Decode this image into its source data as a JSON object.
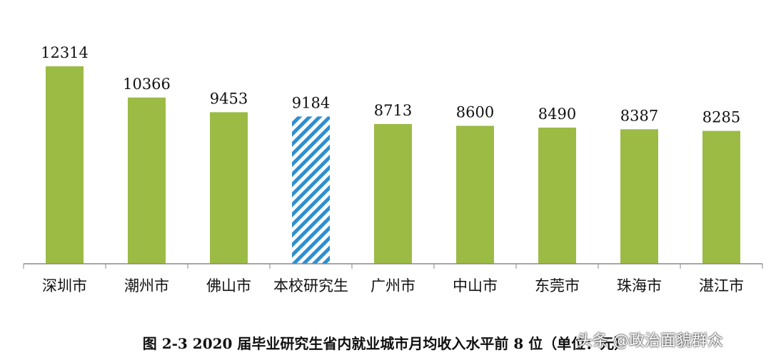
{
  "chart_data": {
    "type": "bar",
    "categories": [
      "深圳市",
      "潮州市",
      "佛山市",
      "本校研究生",
      "广州市",
      "中山市",
      "东莞市",
      "珠海市",
      "湛江市"
    ],
    "values": [
      12314,
      10366,
      9453,
      9184,
      8713,
      8600,
      8490,
      8387,
      8285
    ],
    "highlight_index": 3,
    "colors": {
      "bar": "#9bbb45",
      "highlight_stripe": "#2e8fd0",
      "axis": "#888888",
      "text": "#111111"
    },
    "ylim": [
      0,
      12314
    ],
    "title": "图 2-3    2020 届毕业研究生省内就业城市月均收入水平前 8 位（单位：元）",
    "xlabel": "",
    "ylabel": "",
    "grid": false,
    "legend": "none"
  },
  "watermark": "头条 @政治面貌群众"
}
